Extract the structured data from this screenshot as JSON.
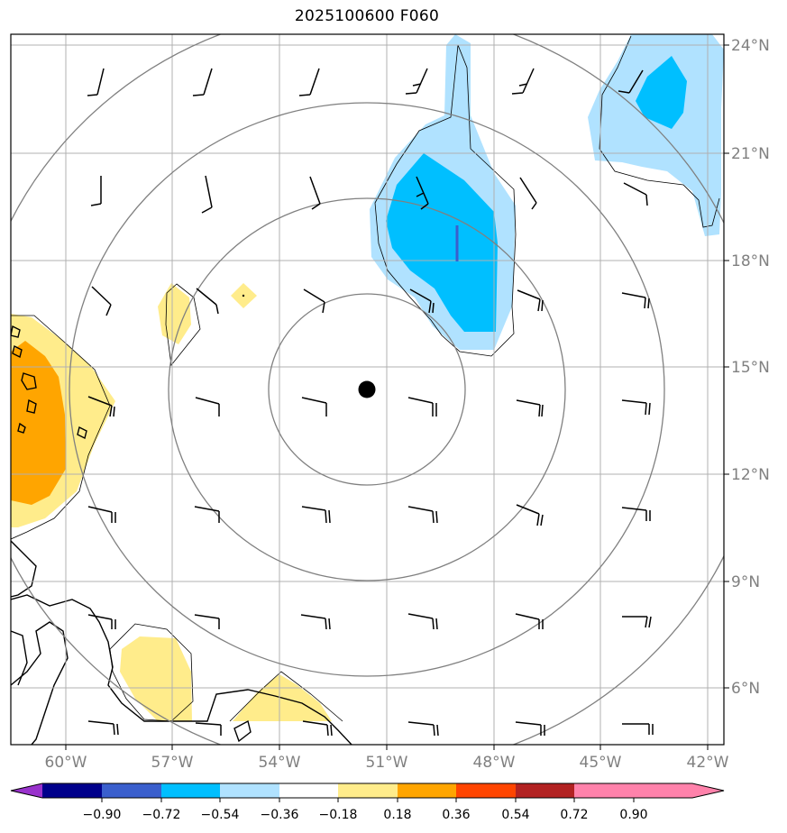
{
  "title": "2025100600 F060",
  "lon_labels": [
    "60°W",
    "57°W",
    "54°W",
    "51°W",
    "48°W",
    "45°W",
    "42°W"
  ],
  "lat_labels": [
    "24°N",
    "21°N",
    "18°N",
    "15°N",
    "12°N",
    "9°N",
    "6°N"
  ],
  "colorbar": {
    "ticks": [
      "−0.90",
      "−0.72",
      "−0.54",
      "−0.36",
      "−0.18",
      "0.18",
      "0.36",
      "0.54",
      "0.72",
      "0.90"
    ],
    "colors": [
      "#9932cc",
      "#00008b",
      "#3a5fcd",
      "#00bfff",
      "#b0e2ff",
      "#ffffff",
      "#ffec8b",
      "#ffa500",
      "#ff4500",
      "#b22222",
      "#ff82ab"
    ]
  },
  "map_data": {
    "lon_range": [
      -61.5,
      -41.5
    ],
    "lat_range": [
      4.5,
      24.3
    ],
    "center": {
      "lon": -51.7,
      "lat": 14.4
    },
    "range_ring_count": 4,
    "shading": {
      "positive_light": "#ffec8b",
      "positive_medium": "#ffa500",
      "negative_light": "#b0e2ff",
      "negative_medium": "#00bfff"
    }
  }
}
